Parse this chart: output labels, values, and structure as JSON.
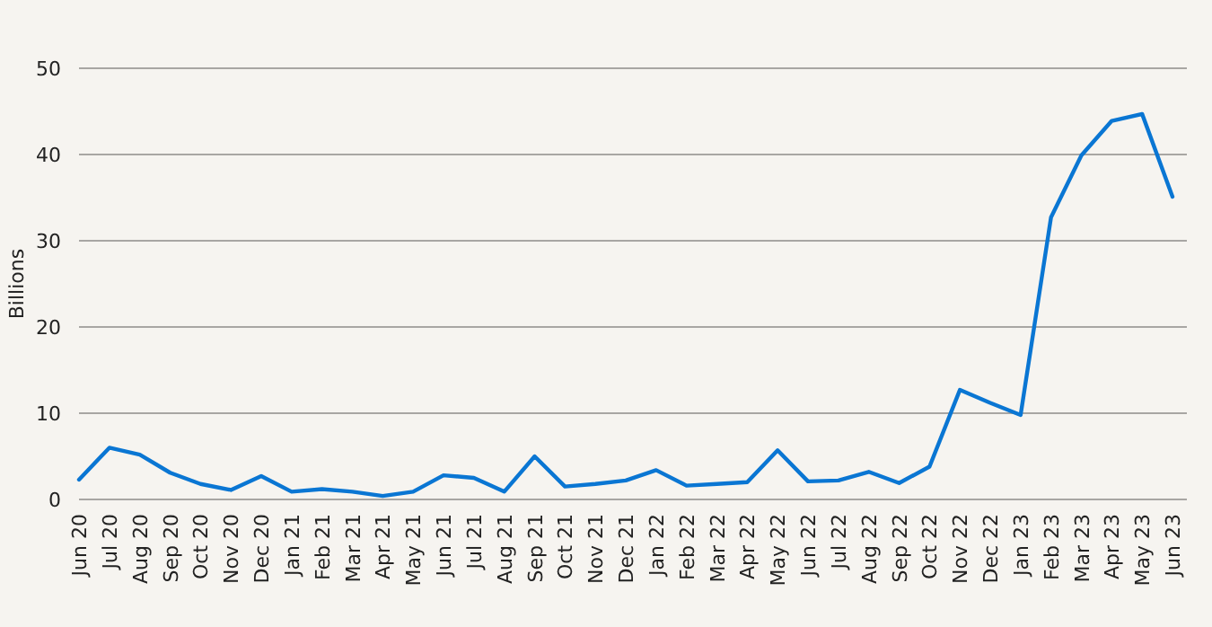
{
  "chart_data": {
    "type": "line",
    "ylabel": "Billions",
    "categories": [
      "Jun 20",
      "Jul 20",
      "Aug 20",
      "Sep 20",
      "Oct 20",
      "Nov 20",
      "Dec 20",
      "Jan 21",
      "Feb 21",
      "Mar 21",
      "Apr 21",
      "May 21",
      "Jun 21",
      "Jul 21",
      "Aug 21",
      "Sep 21",
      "Oct 21",
      "Nov 21",
      "Dec 21",
      "Jan 22",
      "Feb 22",
      "Mar 22",
      "Apr 22",
      "May 22",
      "Jun 22",
      "Jul 22",
      "Aug 22",
      "Sep 22",
      "Oct 22",
      "Nov 22",
      "Dec 22",
      "Jan 23",
      "Feb 23",
      "Mar 23",
      "Apr 23",
      "May 23",
      "Jun 23"
    ],
    "series": [
      {
        "color": "#0a76d3",
        "values": [
          2.3,
          6,
          5.2,
          3.1,
          1.8,
          1.1,
          2.7,
          0.9,
          1.2,
          0.9,
          0.4,
          0.9,
          2.8,
          2.5,
          0.9,
          5,
          1.5,
          1.8,
          2.2,
          3.4,
          1.6,
          1.8,
          2,
          5.7,
          2.1,
          2.2,
          3.2,
          1.9,
          3.8,
          12.7,
          11.2,
          9.8,
          32.7,
          39.9,
          43.9,
          44.7,
          35.1
        ]
      }
    ],
    "ylim": [
      0,
      50
    ],
    "yticks": [
      0,
      10,
      20,
      30,
      40,
      50
    ],
    "grid": "y",
    "marker": "none",
    "line_style": "solid"
  }
}
